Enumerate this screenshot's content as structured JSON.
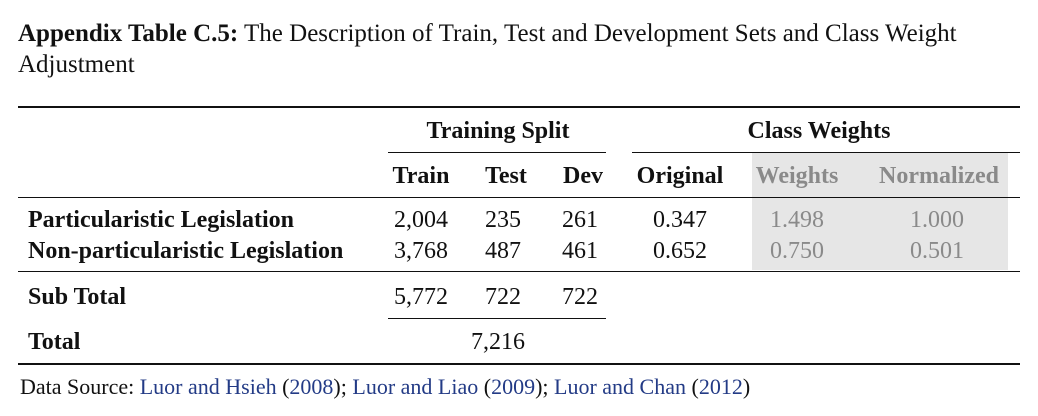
{
  "caption": {
    "label": "Appendix Table C.5:",
    "text": "The Description of Train, Test and Development Sets and Class Weight Adjustment"
  },
  "header": {
    "group_training": "Training Split",
    "group_weights": "Class Weights",
    "columns": [
      "Train",
      "Test",
      "Dev",
      "Original",
      "Weights",
      "Normalized"
    ]
  },
  "rows": [
    {
      "label": "Particularistic Legislation",
      "train": "2,004",
      "test": "235",
      "dev": "261",
      "original": "0.347",
      "weights": "1.498",
      "normalized": "1.000"
    },
    {
      "label": "Non-particularistic Legislation",
      "train": "3,768",
      "test": "487",
      "dev": "461",
      "original": "0.652",
      "weights": "0.750",
      "normalized": "0.501"
    }
  ],
  "subtotal": {
    "label": "Sub Total",
    "train": "5,772",
    "test": "722",
    "dev": "722"
  },
  "total": {
    "label": "Total",
    "value": "7,216"
  },
  "source": {
    "prefix": "Data Source: ",
    "refs": [
      {
        "name": "Luor and Hsieh",
        "year": "2008"
      },
      {
        "name": "Luor and Liao",
        "year": "2009"
      },
      {
        "name": "Luor and Chan",
        "year": "2012"
      }
    ]
  },
  "colors": {
    "shade": "#e6e6e6",
    "cite": "#233b86",
    "muted": "#8a8a8a"
  }
}
